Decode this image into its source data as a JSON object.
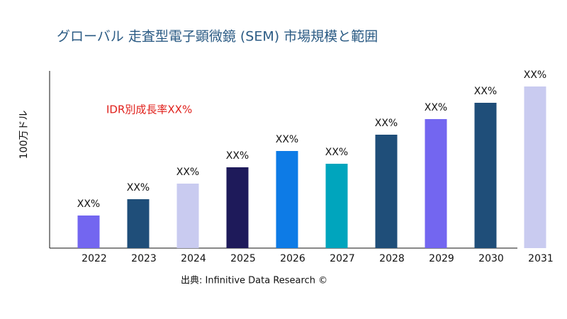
{
  "chart_data": {
    "type": "bar",
    "title": "グローバル 走査型電子顕微鏡 (SEM) 市場規模と範囲",
    "y_label": "100万ドル",
    "annotation": "IDR別成長率XX%",
    "source": "出典: Infinitive Data Research ©",
    "categories": [
      "2022",
      "2023",
      "2024",
      "2025",
      "2026",
      "2027",
      "2028",
      "2029",
      "2030",
      "2031"
    ],
    "values": [
      46,
      69,
      91,
      114,
      137,
      119,
      160,
      182,
      205,
      228
    ],
    "value_labels": [
      "XX%",
      "XX%",
      "XX%",
      "XX%",
      "XX%",
      "XX%",
      "XX%",
      "XX%",
      "XX%",
      "XX%"
    ],
    "colors": [
      "#7366f0",
      "#1f4e79",
      "#c9cbf0",
      "#1e1a5a",
      "#0d7be6",
      "#00a5bd",
      "#1f4e79",
      "#7366f0",
      "#1f4e79",
      "#c9cbf0"
    ],
    "ylim": [
      0,
      250
    ]
  }
}
